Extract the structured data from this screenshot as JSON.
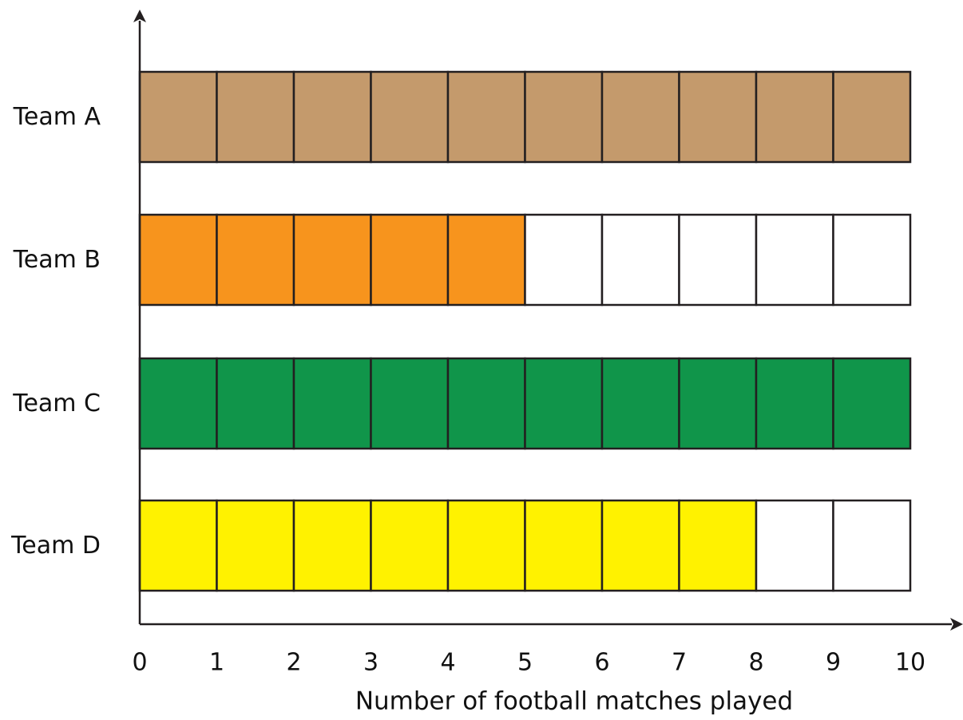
{
  "chart_data": {
    "type": "bar",
    "orientation": "horizontal",
    "style": "unit-block bars",
    "categories": [
      "Team A",
      "Team B",
      "Team C",
      "Team D"
    ],
    "values": [
      10,
      5,
      10,
      8
    ],
    "bar_colors": [
      "#c49a6c",
      "#f7941d",
      "#10954a",
      "#fff200"
    ],
    "empty_color": "#ffffff",
    "outline_color": "#231f20",
    "xlabel": "Number of football matches played",
    "ylabel": "",
    "xlim": [
      0,
      10
    ],
    "x_ticks": [
      "0",
      "1",
      "2",
      "3",
      "4",
      "5",
      "6",
      "7",
      "8",
      "9",
      "10"
    ],
    "grid": false,
    "legend": "none"
  }
}
